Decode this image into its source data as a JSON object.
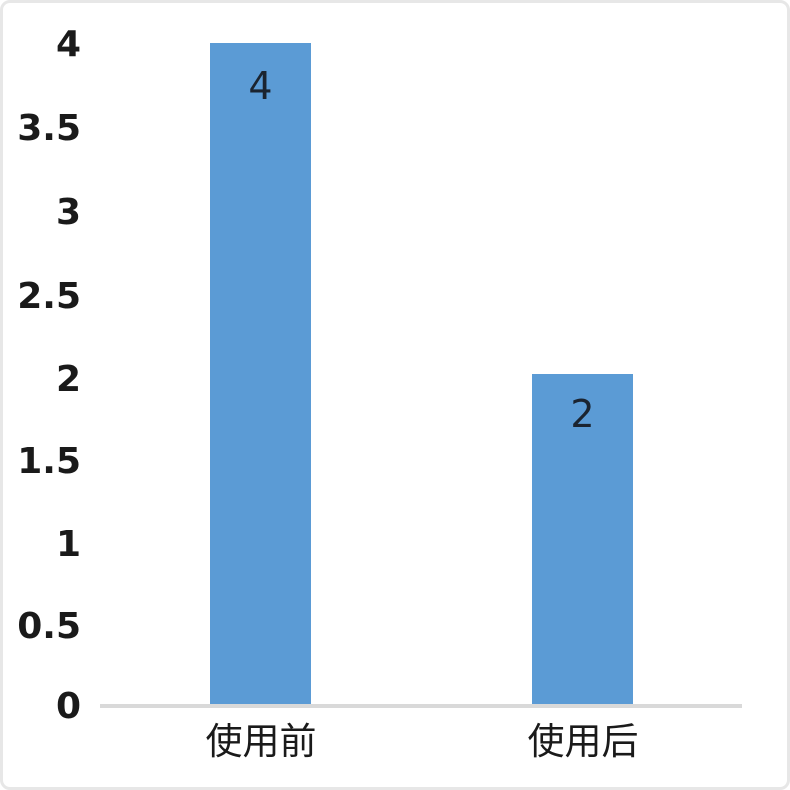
{
  "chart_data": {
    "type": "bar",
    "title": "",
    "categories": [
      "使用前",
      "使用后"
    ],
    "values": [
      4,
      2
    ],
    "data_labels": [
      "4",
      "2"
    ],
    "data_label_position": "inside-end",
    "y_ticks": [
      "4",
      "3.5",
      "3",
      "2.5",
      "2",
      "1.5",
      "1",
      "0.5",
      "0"
    ],
    "ylim": [
      0,
      4
    ],
    "y_tick_step": 0.5,
    "xlabel": "",
    "ylabel": "",
    "grid": "off",
    "legend": "none",
    "bar_color": "#5B9BD5",
    "axis_line_color": "#D9D9D9",
    "tick_label_color": "#1A1A1A",
    "data_label_color": "#1B2430",
    "background_color": "#FFFFFF",
    "border_color": "#E7E7E7"
  }
}
